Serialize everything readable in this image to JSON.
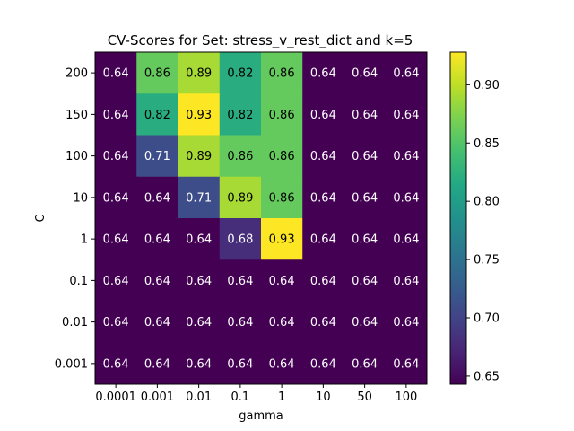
{
  "chart_data": {
    "type": "heatmap",
    "title": "CV-Scores for Set: stress_v_rest_dict and k=5",
    "xlabel": "gamma",
    "ylabel": "C",
    "x_categories": [
      "0.0001",
      "0.001",
      "0.01",
      "0.1",
      "1",
      "10",
      "50",
      "100"
    ],
    "y_categories": [
      "200",
      "150",
      "100",
      "10",
      "1",
      "0.1",
      "0.01",
      "0.001"
    ],
    "values": [
      [
        0.64,
        0.86,
        0.89,
        0.82,
        0.86,
        0.64,
        0.64,
        0.64
      ],
      [
        0.64,
        0.82,
        0.93,
        0.82,
        0.86,
        0.64,
        0.64,
        0.64
      ],
      [
        0.64,
        0.71,
        0.89,
        0.86,
        0.86,
        0.64,
        0.64,
        0.64
      ],
      [
        0.64,
        0.64,
        0.71,
        0.89,
        0.86,
        0.64,
        0.64,
        0.64
      ],
      [
        0.64,
        0.64,
        0.64,
        0.68,
        0.93,
        0.64,
        0.64,
        0.64
      ],
      [
        0.64,
        0.64,
        0.64,
        0.64,
        0.64,
        0.64,
        0.64,
        0.64
      ],
      [
        0.64,
        0.64,
        0.64,
        0.64,
        0.64,
        0.64,
        0.64,
        0.64
      ],
      [
        0.64,
        0.64,
        0.64,
        0.64,
        0.64,
        0.64,
        0.64,
        0.64
      ]
    ],
    "colorbar": {
      "range": [
        0.643,
        0.928
      ],
      "ticks": [
        0.65,
        0.7,
        0.75,
        0.8,
        0.85,
        0.9
      ],
      "tick_labels": [
        "0.65",
        "0.70",
        "0.75",
        "0.80",
        "0.85",
        "0.90"
      ]
    },
    "colormap": "viridis",
    "grid": false
  }
}
